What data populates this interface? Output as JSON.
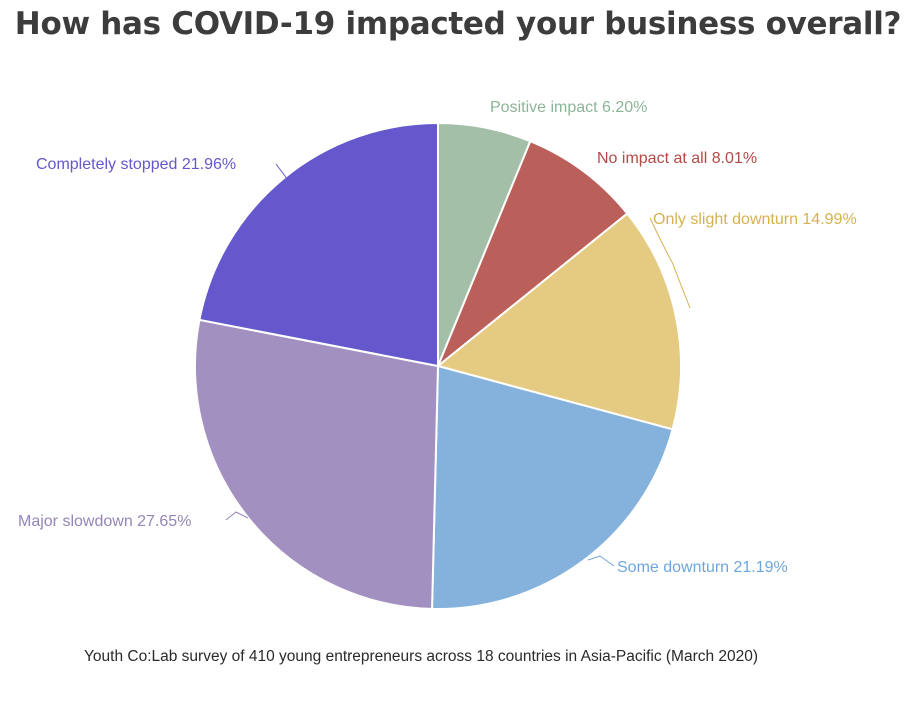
{
  "chart_data": {
    "type": "pie",
    "title": "How has COVID-19 impacted your business overall?",
    "caption": "Youth Co:Lab survey of 410 young entrepreneurs across 18 countries in Asia-Pacific (March 2020)",
    "legend": "none (labels placed beside slices)",
    "start_angle_deg": 0,
    "direction": "clockwise",
    "slices": [
      {
        "label": "Positive impact 6.20%",
        "value": 6.2,
        "color": "#a3bfa8"
      },
      {
        "label": "No impact at all 8.01%",
        "value": 8.01,
        "color": "#bb5f5b"
      },
      {
        "label": "Only slight downturn 14.99%",
        "value": 14.99,
        "color": "#e5cb81"
      },
      {
        "label": "Some downturn 21.19%",
        "value": 21.19,
        "color": "#85b2dc"
      },
      {
        "label": "Major slowdown 27.65%",
        "value": 27.65,
        "color": "#a291c0"
      },
      {
        "label": "Completely stopped 21.96%",
        "value": 21.96,
        "color": "#6458cc"
      }
    ]
  }
}
